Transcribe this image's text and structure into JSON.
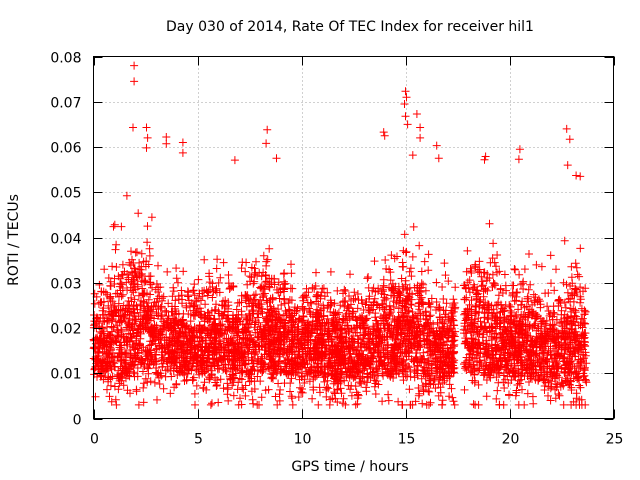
{
  "chart_data": {
    "type": "scatter",
    "title": "Day 030 of 2014, Rate Of TEC Index for receiver hil1",
    "xlabel": "GPS time / hours",
    "ylabel": "ROTI / TECUs",
    "xlim": [
      0,
      25
    ],
    "ylim": [
      0,
      0.08
    ],
    "xticks": [
      0,
      5,
      10,
      15,
      20,
      25
    ],
    "xtick_labels": [
      "0",
      "5",
      "10",
      "15",
      "20",
      "25"
    ],
    "yticks": [
      0,
      0.01,
      0.02,
      0.03,
      0.04,
      0.05,
      0.06,
      0.07,
      0.08
    ],
    "ytick_labels": [
      "0",
      "0.01",
      "0.02",
      "0.03",
      "0.04",
      "0.05",
      "0.06",
      "0.07",
      "0.08"
    ],
    "grid": true,
    "marker": "plus",
    "marker_color": "#ff0000",
    "x_coverage_hours": [
      0,
      23.7
    ],
    "data_gaps_hours": [
      [
        17.4,
        17.8
      ]
    ],
    "typical_range": [
      0.005,
      0.04
    ],
    "notable_points": [
      {
        "x": 1.95,
        "y": 0.078
      },
      {
        "x": 1.95,
        "y": 0.0745
      },
      {
        "x": 1.9,
        "y": 0.0643
      },
      {
        "x": 2.55,
        "y": 0.0643
      },
      {
        "x": 2.6,
        "y": 0.062
      },
      {
        "x": 2.55,
        "y": 0.0598
      },
      {
        "x": 3.5,
        "y": 0.0622
      },
      {
        "x": 3.5,
        "y": 0.0607
      },
      {
        "x": 4.3,
        "y": 0.061
      },
      {
        "x": 4.3,
        "y": 0.0587
      },
      {
        "x": 6.8,
        "y": 0.0571
      },
      {
        "x": 8.35,
        "y": 0.0638
      },
      {
        "x": 8.3,
        "y": 0.0608
      },
      {
        "x": 8.8,
        "y": 0.0575
      },
      {
        "x": 13.95,
        "y": 0.0633
      },
      {
        "x": 14.0,
        "y": 0.0625
      },
      {
        "x": 15.0,
        "y": 0.0723
      },
      {
        "x": 15.05,
        "y": 0.071
      },
      {
        "x": 14.95,
        "y": 0.0695
      },
      {
        "x": 15.0,
        "y": 0.0668
      },
      {
        "x": 15.1,
        "y": 0.065
      },
      {
        "x": 15.55,
        "y": 0.0673
      },
      {
        "x": 15.7,
        "y": 0.0643
      },
      {
        "x": 15.7,
        "y": 0.062
      },
      {
        "x": 15.35,
        "y": 0.0582
      },
      {
        "x": 16.5,
        "y": 0.0603
      },
      {
        "x": 16.6,
        "y": 0.0575
      },
      {
        "x": 18.85,
        "y": 0.0579
      },
      {
        "x": 18.8,
        "y": 0.0572
      },
      {
        "x": 20.5,
        "y": 0.0595
      },
      {
        "x": 20.45,
        "y": 0.0573
      },
      {
        "x": 22.75,
        "y": 0.064
      },
      {
        "x": 22.9,
        "y": 0.0617
      },
      {
        "x": 22.8,
        "y": 0.056
      },
      {
        "x": 23.2,
        "y": 0.0537
      },
      {
        "x": 23.4,
        "y": 0.0535
      },
      {
        "x": 12.7,
        "y": 0.0045
      },
      {
        "x": 16.2,
        "y": 0.0035
      },
      {
        "x": 21.85,
        "y": 0.005
      }
    ],
    "bulk_envelope_hourly": [
      {
        "hour": 0,
        "low": 0.009,
        "high": 0.028
      },
      {
        "hour": 1,
        "low": 0.007,
        "high": 0.043
      },
      {
        "hour": 2,
        "low": 0.008,
        "high": 0.048
      },
      {
        "hour": 3,
        "low": 0.009,
        "high": 0.04
      },
      {
        "hour": 4,
        "low": 0.009,
        "high": 0.03
      },
      {
        "hour": 5,
        "low": 0.009,
        "high": 0.033
      },
      {
        "hour": 6,
        "low": 0.008,
        "high": 0.037
      },
      {
        "hour": 7,
        "low": 0.008,
        "high": 0.035
      },
      {
        "hour": 8,
        "low": 0.008,
        "high": 0.043
      },
      {
        "hour": 9,
        "low": 0.009,
        "high": 0.038
      },
      {
        "hour": 10,
        "low": 0.008,
        "high": 0.033
      },
      {
        "hour": 11,
        "low": 0.008,
        "high": 0.036
      },
      {
        "hour": 12,
        "low": 0.006,
        "high": 0.033
      },
      {
        "hour": 13,
        "low": 0.008,
        "high": 0.032
      },
      {
        "hour": 14,
        "low": 0.009,
        "high": 0.038
      },
      {
        "hour": 15,
        "low": 0.008,
        "high": 0.045
      },
      {
        "hour": 16,
        "low": 0.006,
        "high": 0.04
      },
      {
        "hour": 17,
        "low": 0.008,
        "high": 0.03
      },
      {
        "hour": 18,
        "low": 0.008,
        "high": 0.042
      },
      {
        "hour": 19,
        "low": 0.008,
        "high": 0.04
      },
      {
        "hour": 20,
        "low": 0.008,
        "high": 0.036
      },
      {
        "hour": 21,
        "low": 0.007,
        "high": 0.036
      },
      {
        "hour": 22,
        "low": 0.007,
        "high": 0.035
      },
      {
        "hour": 23,
        "low": 0.006,
        "high": 0.038
      }
    ]
  }
}
